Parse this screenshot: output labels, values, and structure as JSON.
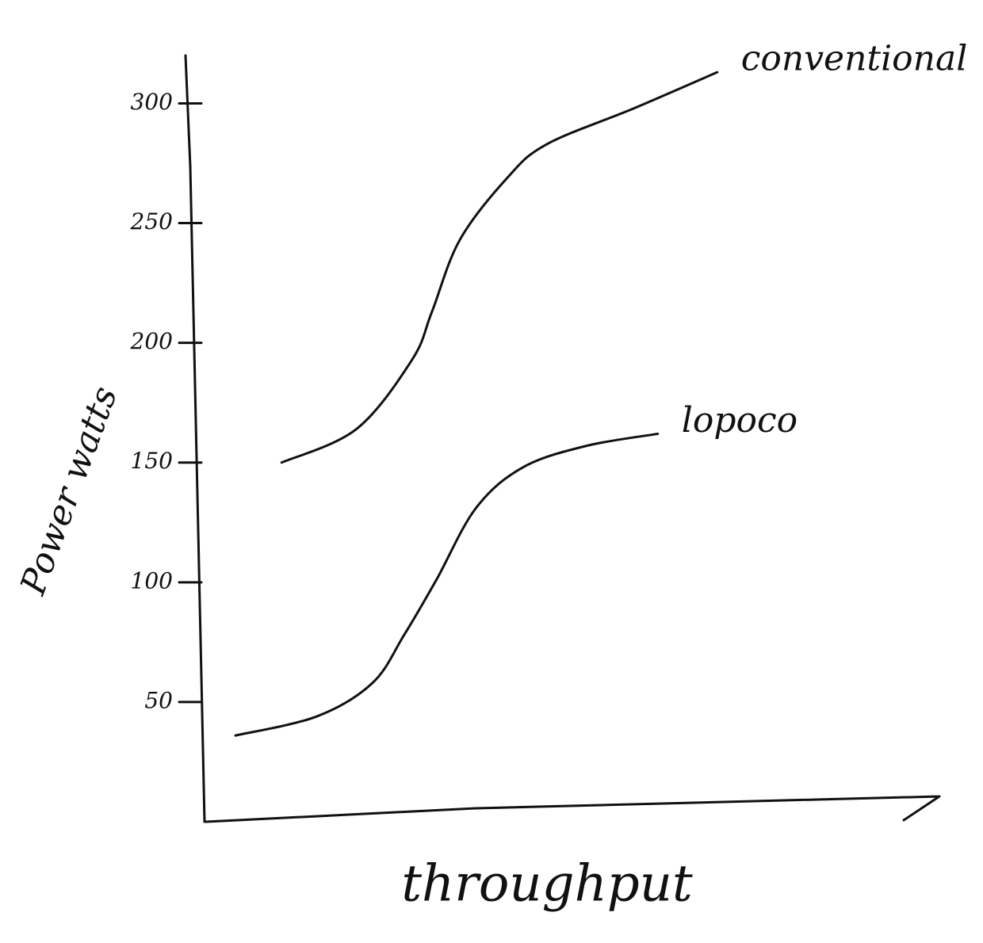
{
  "chart_data": {
    "type": "line",
    "xlabel": "throughput",
    "ylabel": "Power watts",
    "xlim": [
      0,
      100
    ],
    "ylim": [
      0,
      320
    ],
    "yticks": [
      50,
      100,
      150,
      200,
      250,
      300
    ],
    "series": [
      {
        "name": "conventional",
        "color": "#111111",
        "x": [
          10.3,
          20.5,
          28.1,
          30.8,
          34.6,
          41.1,
          46.5,
          58.4,
          69.7
        ],
        "values": [
          150,
          164,
          193,
          213,
          243,
          269,
          283,
          298,
          313
        ]
      },
      {
        "name": "lopoco",
        "color": "#111111",
        "x": [
          4,
          15.1,
          22.7,
          27,
          31.4,
          36.8,
          43.2,
          51.9,
          61.6
        ],
        "values": [
          36,
          44,
          58,
          78,
          101,
          131,
          148,
          157,
          162
        ]
      }
    ]
  }
}
